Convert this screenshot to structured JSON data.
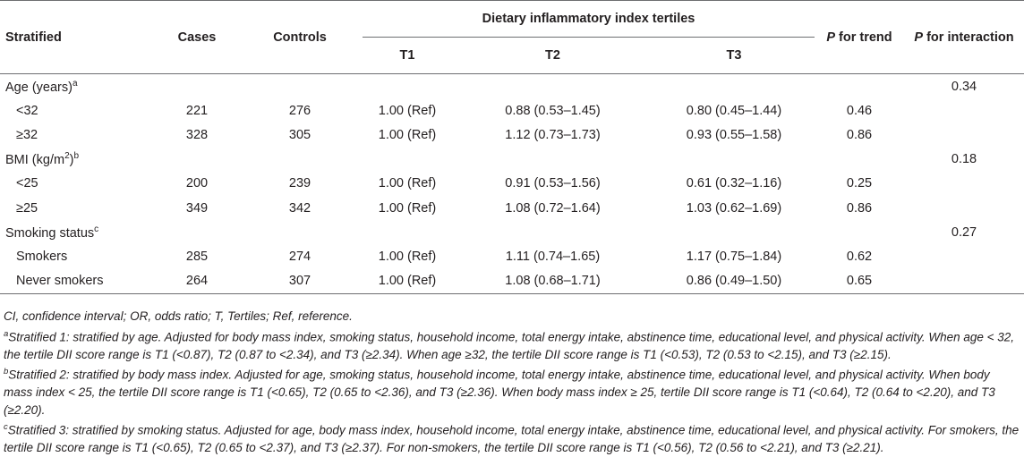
{
  "table": {
    "headers": {
      "stratified": "Stratified",
      "cases": "Cases",
      "controls": "Controls",
      "dii_group": "Dietary inflammatory index tertiles",
      "p_trend_p": "P",
      "p_trend_rest": " for trend",
      "p_inter_p": "P",
      "p_inter_rest": " for interaction",
      "t1": "T1",
      "t2": "T2",
      "t3": "T3"
    },
    "groups": [
      {
        "label": "Age (years)",
        "sup": "a",
        "p_interaction": "0.34",
        "rows": [
          {
            "label": "<32",
            "cases": "221",
            "controls": "276",
            "t1": "1.00 (Ref)",
            "t2": "0.88 (0.53–1.45)",
            "t3": "0.80 (0.45–1.44)",
            "p_trend": "0.46"
          },
          {
            "label": "≥32",
            "cases": "328",
            "controls": "305",
            "t1": "1.00 (Ref)",
            "t2": "1.12 (0.73–1.73)",
            "t3": "0.93 (0.55–1.58)",
            "p_trend": "0.86"
          }
        ]
      },
      {
        "label_pre": "BMI (kg/m",
        "label_sup2": "2",
        "label_post": ")",
        "sup": "b",
        "p_interaction": "0.18",
        "rows": [
          {
            "label": "<25",
            "cases": "200",
            "controls": "239",
            "t1": "1.00 (Ref)",
            "t2": "0.91 (0.53–1.56)",
            "t3": "0.61 (0.32–1.16)",
            "p_trend": "0.25"
          },
          {
            "label": "≥25",
            "cases": "349",
            "controls": "342",
            "t1": "1.00 (Ref)",
            "t2": "1.08 (0.72–1.64)",
            "t3": "1.03 (0.62–1.69)",
            "p_trend": "0.86"
          }
        ]
      },
      {
        "label": "Smoking status",
        "sup": "c",
        "p_interaction": "0.27",
        "rows": [
          {
            "label": "Smokers",
            "cases": "285",
            "controls": "274",
            "t1": "1.00 (Ref)",
            "t2": "1.11 (0.74–1.65)",
            "t3": "1.17 (0.75–1.84)",
            "p_trend": "0.62"
          },
          {
            "label": "Never smokers",
            "cases": "264",
            "controls": "307",
            "t1": "1.00 (Ref)",
            "t2": "1.08 (0.68–1.71)",
            "t3": "0.86 (0.49–1.50)",
            "p_trend": "0.65"
          }
        ]
      }
    ]
  },
  "footnotes": {
    "abbrev": "CI, confidence interval; OR, odds ratio; T, Tertiles; Ref, reference.",
    "a_sup": "a",
    "a_text": "Stratified 1: stratified by age. Adjusted for body mass index, smoking status, household income, total energy intake, abstinence time, educational level, and physical activity. When age < 32, the tertile DII score range is T1 (<0.87), T2 (0.87 to <2.34), and T3 (≥2.34). When age ≥32, the tertile DII score range is T1 (<0.53), T2 (0.53 to <2.15), and T3 (≥2.15).",
    "b_sup": "b",
    "b_text": "Stratified 2: stratified by body mass index. Adjusted for age, smoking status, household income, total energy intake, abstinence time, educational level, and physical activity. When body mass index < 25, the tertile DII score range is T1 (<0.65), T2 (0.65 to <2.36), and T3 (≥2.36). When body mass index ≥ 25, tertile DII score range is T1 (<0.64), T2 (0.64 to <2.20), and T3 (≥2.20).",
    "c_sup": "c",
    "c_text": "Stratified 3: stratified by smoking status. Adjusted for age, body mass index, household income, total energy intake, abstinence time, educational level, and physical activity. For smokers, the tertile DII score range is T1 (<0.65), T2 (0.65 to <2.37), and T3 (≥2.37). For non-smokers, the tertile DII score range is T1 (<0.56), T2 (0.56 to <2.21), and T3 (≥2.21)."
  }
}
